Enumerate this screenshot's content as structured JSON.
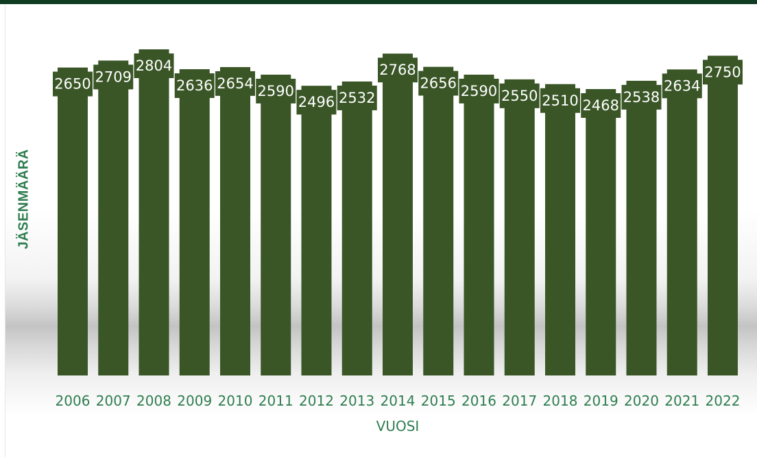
{
  "chart_data": {
    "type": "bar",
    "title": "",
    "xlabel": "VUOSI",
    "ylabel": "JÄSENMÄÄRÄ",
    "categories": [
      "2006",
      "2007",
      "2008",
      "2009",
      "2010",
      "2011",
      "2012",
      "2013",
      "2014",
      "2015",
      "2016",
      "2017",
      "2018",
      "2019",
      "2020",
      "2021",
      "2022"
    ],
    "values": [
      2650,
      2709,
      2804,
      2636,
      2654,
      2590,
      2496,
      2532,
      2768,
      2656,
      2590,
      2550,
      2510,
      2468,
      2538,
      2634,
      2750
    ],
    "data_labels": [
      "2650",
      "2709",
      "2804",
      "2636",
      "2654",
      "2590",
      "2496",
      "2532",
      "2768",
      "2656",
      "2590",
      "2550",
      "2510",
      "2468",
      "2538",
      "2634",
      "2750"
    ],
    "ylim": [
      0,
      2900
    ],
    "grid": false,
    "legend": "none",
    "colors": {
      "bar": "#3a5626",
      "label_box": "#3a5626",
      "label_text": "#ffffff",
      "tick_text": "#2e7d4f",
      "axis_title": "#2e7d4f",
      "top_bar": "#0e3b22"
    }
  }
}
